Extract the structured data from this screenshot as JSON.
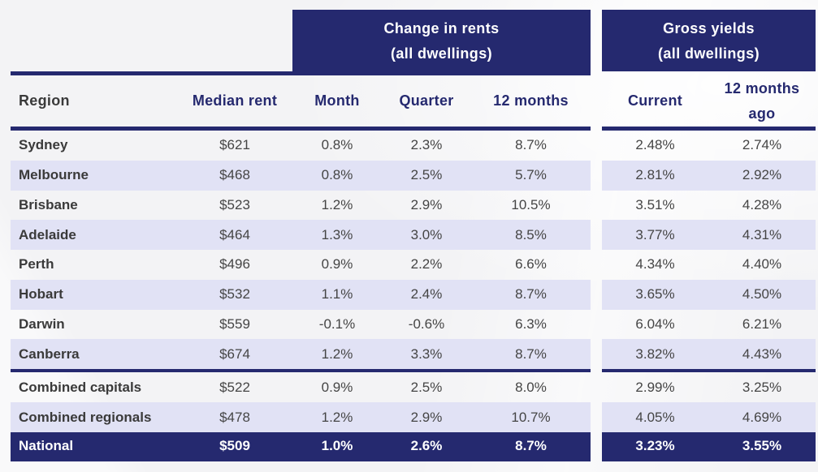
{
  "chart_data": {
    "type": "table",
    "group_headers": [
      {
        "label": "Change in rents",
        "sublabel": "(all dwellings)",
        "spans": [
          "Month",
          "Quarter",
          "12 months"
        ]
      },
      {
        "label": "Gross yields",
        "sublabel": "(all dwellings)",
        "spans": [
          "Current",
          "12 months ago"
        ]
      }
    ],
    "columns": [
      "Region",
      "Median rent",
      "Month",
      "Quarter",
      "12 months",
      "Current",
      "12 months ago"
    ],
    "rows": [
      [
        "Sydney",
        "$621",
        "0.8%",
        "2.3%",
        "8.7%",
        "2.48%",
        "2.74%"
      ],
      [
        "Melbourne",
        "$468",
        "0.8%",
        "2.5%",
        "5.7%",
        "2.81%",
        "2.92%"
      ],
      [
        "Brisbane",
        "$523",
        "1.2%",
        "2.9%",
        "10.5%",
        "3.51%",
        "4.28%"
      ],
      [
        "Adelaide",
        "$464",
        "1.3%",
        "3.0%",
        "8.5%",
        "3.77%",
        "4.31%"
      ],
      [
        "Perth",
        "$496",
        "0.9%",
        "2.2%",
        "6.6%",
        "4.34%",
        "4.40%"
      ],
      [
        "Hobart",
        "$532",
        "1.1%",
        "2.4%",
        "8.7%",
        "3.65%",
        "4.50%"
      ],
      [
        "Darwin",
        "$559",
        "-0.1%",
        "-0.6%",
        "6.3%",
        "6.04%",
        "6.21%"
      ],
      [
        "Canberra",
        "$674",
        "1.2%",
        "3.3%",
        "8.7%",
        "3.82%",
        "4.43%"
      ],
      [
        "Combined capitals",
        "$522",
        "0.9%",
        "2.5%",
        "8.0%",
        "2.99%",
        "3.25%"
      ],
      [
        "Combined regionals",
        "$478",
        "1.2%",
        "2.9%",
        "10.7%",
        "4.05%",
        "4.69%"
      ],
      [
        "National",
        "$509",
        "1.0%",
        "2.6%",
        "8.7%",
        "3.23%",
        "3.55%"
      ]
    ],
    "summary_row": "National",
    "section_break_after_row": "Canberra",
    "layout": {
      "grid": false,
      "striped": true,
      "two_column_groups_gap": true
    }
  },
  "colors": {
    "navy": "#25296f",
    "stripe": "#e1e2f5",
    "page_bg": "#f3f3f5",
    "body_text": "#454545",
    "summary_text": "#ffffff"
  }
}
